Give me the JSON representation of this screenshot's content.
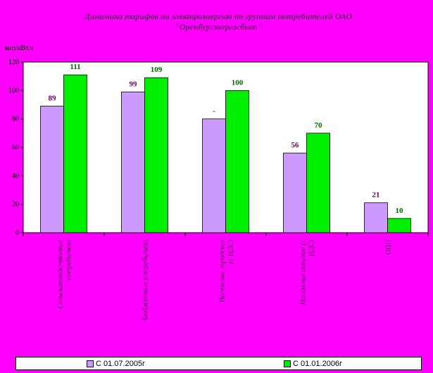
{
  "chart_data": {
    "type": "bar",
    "title": "Динамика тарифов на электроэнергию по группам потребителей ОАО \"Оренбургэнергосбыт\"",
    "title_lines": [
      "Динамика тарифов на электроэнергию по группам потребителей ОАО",
      "\"Оренбургэнергосбыт\""
    ],
    "ylabel": "коп/кВт.ч",
    "ylim": [
      0,
      120
    ],
    "yticks": [
      "0",
      "20",
      "40",
      "60",
      "80",
      "100",
      "120"
    ],
    "categories": [
      [
        "Сельскохозяйственные",
        "потребители"
      ],
      [
        "Бюджетные потребители"
      ],
      [
        "Население городское",
        "(с НДС)"
      ],
      [
        "Население сельское (с",
        "НДС)"
      ],
      [
        "ОПП"
      ]
    ],
    "series": [
      {
        "name": "С 01.07.2005г",
        "color": "#cc99ff",
        "label_color": "#660066",
        "values": [
          89,
          99,
          80,
          56,
          21
        ],
        "labels": [
          "89",
          "99",
          "-",
          "56",
          "21"
        ]
      },
      {
        "name": "С 01.01.2006г",
        "color": "#00ee00",
        "label_color": "#006600",
        "values": [
          111,
          109,
          100,
          70,
          10
        ],
        "labels": [
          "111",
          "109",
          "100",
          "70",
          "10"
        ]
      }
    ],
    "grid": false,
    "legend_position": "bottom",
    "plot_background": "#ffffff",
    "page_background": "#ff00ff"
  }
}
